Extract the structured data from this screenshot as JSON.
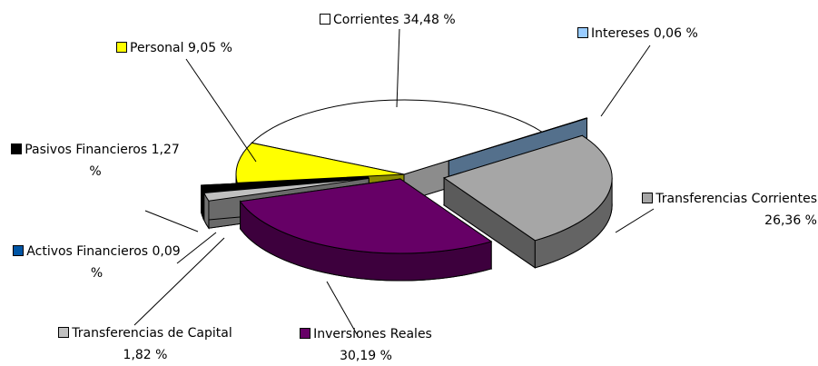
{
  "chart_data": {
    "type": "pie",
    "categories": [
      "Corrientes",
      "Intereses",
      "Transferencias Corrientes",
      "Inversiones Reales",
      "Transferencias de Capital",
      "Activos Financieros",
      "Pasivos Financieros",
      "Personal"
    ],
    "values": [
      34.48,
      0.06,
      26.36,
      30.19,
      1.82,
      0.09,
      1.27,
      9.05
    ],
    "value_labels": [
      "34,48 %",
      "0,06 %",
      "26,36 %",
      "30,19 %",
      "1,82 %",
      "0,09 %",
      "1,27 %",
      "9,05 %"
    ],
    "colors": [
      "#ffffff",
      "#99ccff",
      "#a6a6a6",
      "#660066",
      "#c0c0c0",
      "#0055a5",
      "#000000",
      "#ffff00"
    ]
  }
}
